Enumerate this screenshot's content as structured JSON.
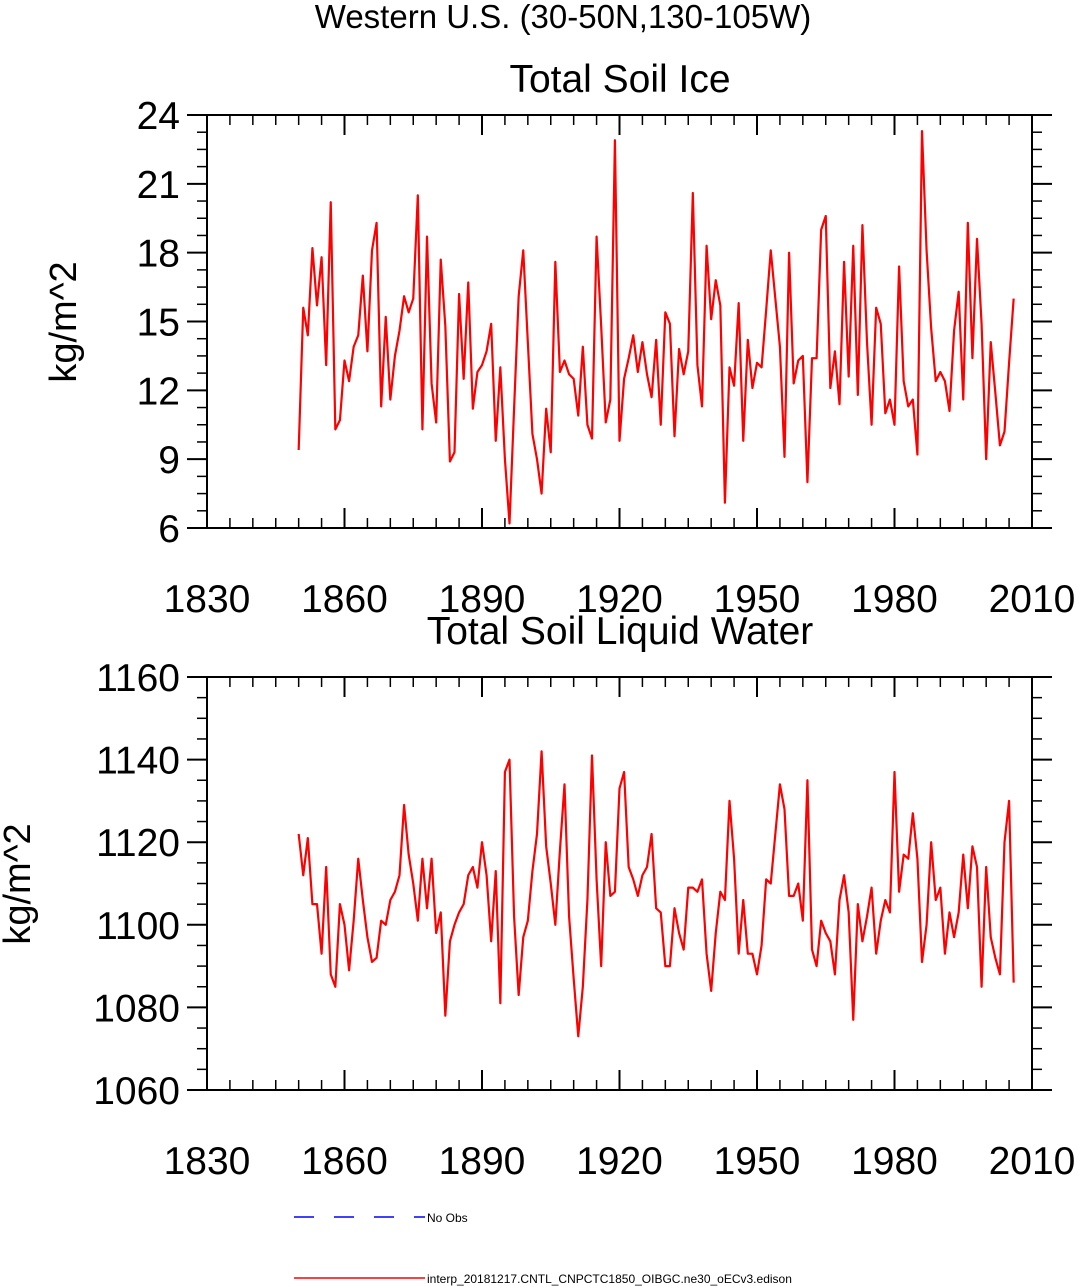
{
  "figure_title": "Western U.S. (30-50N,130-105W)",
  "colors": {
    "model_line": "#ff0000",
    "obs_line": "#0000ff",
    "axes": "#000000"
  },
  "legend": {
    "position": "bottom",
    "entries": [
      {
        "label": "No Obs",
        "color": "#0000ff",
        "style": "dashed"
      },
      {
        "label": "interp_20181217.CNTL_CNPCTC1850_OIBGC.ne30_oECv3.edison",
        "color": "#ff0000",
        "style": "solid"
      }
    ]
  },
  "chart_data": [
    {
      "type": "line",
      "title": "Total Soil Ice",
      "xlabel": "",
      "ylabel": "kg/m^2",
      "xlim": [
        1830,
        2010
      ],
      "ylim": [
        6,
        24
      ],
      "xticks": [
        1830,
        1860,
        1890,
        1920,
        1950,
        1980,
        2010
      ],
      "xtick_labels": [
        "1830",
        "1860",
        "1890",
        "1920",
        "1950",
        "1980",
        "2010"
      ],
      "yticks": [
        6,
        9,
        12,
        15,
        18,
        21,
        24
      ],
      "ytick_labels": [
        "6",
        "9",
        "12",
        "15",
        "18",
        "21",
        "24"
      ],
      "x_start": 1850,
      "x_step": 1,
      "series": [
        {
          "name": "interp_20181217.CNTL_CNPCTC1850_OIBGC.ne30_oECv3.edison",
          "values": [
            9.4,
            15.6,
            14.4,
            18.2,
            15.7,
            17.8,
            13.1,
            20.2,
            10.3,
            10.7,
            13.3,
            12.4,
            13.9,
            14.4,
            17.0,
            13.7,
            18.1,
            19.3,
            11.3,
            15.2,
            11.6,
            13.5,
            14.6,
            16.1,
            15.4,
            16.0,
            20.5,
            10.3,
            18.7,
            12.3,
            10.6,
            17.7,
            14.8,
            8.9,
            9.3,
            16.2,
            12.5,
            16.7,
            11.2,
            12.8,
            13.1,
            13.7,
            14.9,
            9.8,
            13.0,
            9.0,
            6.2,
            11.2,
            16.1,
            18.1,
            14.1,
            10.1,
            9.0,
            7.5,
            11.2,
            9.3,
            17.6,
            12.8,
            13.3,
            12.7,
            12.5,
            10.9,
            13.9,
            10.5,
            9.9,
            18.7,
            14.8,
            10.6,
            11.6,
            22.9,
            9.8,
            12.5,
            13.4,
            14.4,
            12.8,
            14.1,
            12.7,
            11.7,
            14.2,
            10.5,
            15.4,
            14.9,
            10.0,
            13.8,
            12.7,
            13.7,
            20.6,
            13.1,
            11.3,
            18.3,
            15.1,
            16.8,
            15.7,
            7.1,
            13.0,
            12.2,
            15.8,
            9.8,
            14.2,
            12.1,
            13.2,
            13.0,
            15.5,
            18.1,
            16.0,
            13.9,
            9.1,
            18.0,
            12.3,
            13.3,
            13.5,
            8.0,
            13.4,
            13.4,
            19.0,
            19.6,
            12.1,
            13.7,
            11.4,
            17.6,
            12.6,
            18.3,
            11.8,
            19.2,
            14.1,
            10.5,
            15.6,
            14.9,
            11.0,
            11.6,
            10.5,
            17.4,
            12.4,
            11.3,
            11.6,
            9.2,
            23.3,
            18.1,
            14.7,
            12.4,
            12.8,
            12.4,
            11.1,
            14.6,
            16.3,
            11.6,
            19.3,
            13.4,
            18.6,
            14.9,
            9.0,
            14.1,
            11.9,
            9.6,
            10.2,
            13.2,
            16.0
          ]
        }
      ]
    },
    {
      "type": "line",
      "title": "Total Soil Liquid Water",
      "xlabel": "",
      "ylabel": "kg/m^2",
      "xlim": [
        1830,
        2010
      ],
      "ylim": [
        1060,
        1160
      ],
      "xticks": [
        1830,
        1860,
        1890,
        1920,
        1950,
        1980,
        2010
      ],
      "xtick_labels": [
        "1830",
        "1860",
        "1890",
        "1920",
        "1950",
        "1980",
        "2010"
      ],
      "yticks": [
        1060,
        1080,
        1100,
        1120,
        1140,
        1160
      ],
      "ytick_labels": [
        "1060",
        "1080",
        "1100",
        "1120",
        "1140",
        "1160"
      ],
      "x_start": 1850,
      "x_step": 1,
      "series": [
        {
          "name": "interp_20181217.CNTL_CNPCTC1850_OIBGC.ne30_oECv3.edison",
          "values": [
            1122,
            1112,
            1121,
            1105,
            1105,
            1093,
            1114,
            1088,
            1085,
            1105,
            1100,
            1089,
            1101,
            1116,
            1106,
            1097,
            1091,
            1092,
            1101,
            1100,
            1106,
            1108,
            1112,
            1129,
            1117,
            1110,
            1101,
            1116,
            1104,
            1116,
            1098,
            1103,
            1078,
            1096,
            1100,
            1103,
            1105,
            1112,
            1114,
            1109,
            1120,
            1112,
            1096,
            1113,
            1081,
            1137,
            1140,
            1102,
            1083,
            1097,
            1101,
            1113,
            1122,
            1142,
            1119,
            1110,
            1100,
            1118,
            1134,
            1102,
            1087,
            1073,
            1085,
            1106,
            1141,
            1111,
            1090,
            1120,
            1107,
            1108,
            1133,
            1137,
            1114,
            1111,
            1107,
            1112,
            1114,
            1122,
            1104,
            1103,
            1090,
            1090,
            1104,
            1098,
            1094,
            1109,
            1109,
            1108,
            1111,
            1093,
            1084,
            1098,
            1108,
            1106,
            1130,
            1116,
            1093,
            1106,
            1093,
            1093,
            1088,
            1095,
            1111,
            1110,
            1122,
            1134,
            1128,
            1107,
            1107,
            1110,
            1101,
            1135,
            1094,
            1090,
            1101,
            1098,
            1096,
            1088,
            1106,
            1112,
            1103,
            1077,
            1105,
            1096,
            1102,
            1109,
            1093,
            1101,
            1106,
            1103,
            1137,
            1108,
            1117,
            1116,
            1127,
            1116,
            1091,
            1100,
            1120,
            1106,
            1109,
            1093,
            1103,
            1097,
            1103,
            1117,
            1104,
            1119,
            1114,
            1085,
            1114,
            1097,
            1092,
            1088,
            1120,
            1130,
            1086
          ]
        }
      ]
    }
  ]
}
